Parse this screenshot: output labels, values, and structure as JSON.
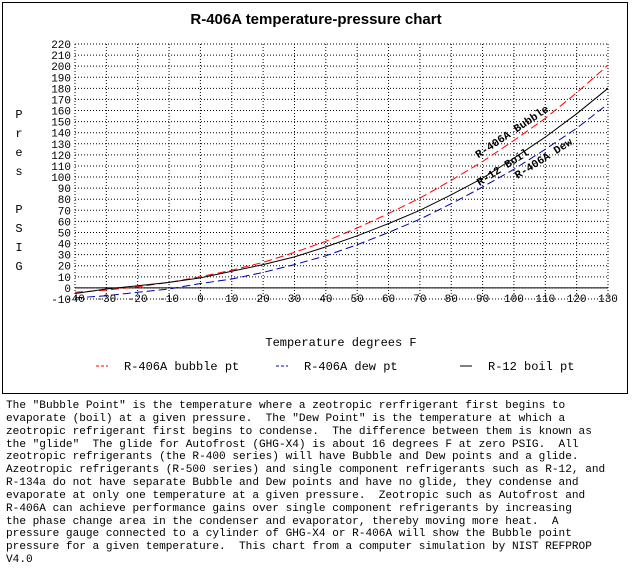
{
  "colors": {
    "bubble": "#ff0000",
    "dew": "#0000aa",
    "boil": "#000000",
    "grid": "#000000"
  },
  "chart_data": {
    "type": "line",
    "title": "R-406A temperature-pressure chart",
    "xlabel": "Temperature degrees F",
    "ylabel": "Pres PSIG",
    "ylabel_letters": [
      "P",
      "r",
      "e",
      "s",
      "",
      "P",
      "S",
      "I",
      "G"
    ],
    "xlim": [
      -40,
      130
    ],
    "ylim": [
      -10,
      220
    ],
    "x_ticks": [
      -40,
      -30,
      -20,
      -10,
      0,
      10,
      20,
      30,
      40,
      50,
      60,
      70,
      80,
      90,
      100,
      110,
      120,
      130
    ],
    "x_tick_labels": [
      "-40",
      "-30",
      "-20",
      "-10",
      "0",
      "10",
      "20",
      "30",
      "40",
      "50",
      "60",
      "70",
      "80",
      "90",
      "100",
      "110",
      "120",
      "130"
    ],
    "y_ticks": [
      -10,
      0,
      10,
      20,
      30,
      40,
      50,
      60,
      70,
      80,
      90,
      100,
      110,
      120,
      130,
      140,
      150,
      160,
      170,
      180,
      190,
      200,
      210,
      220
    ],
    "y_tick_labels": [
      "-10",
      "0",
      "10",
      "20",
      "30",
      "40",
      "50",
      "60",
      "70",
      "80",
      "90",
      "100",
      "110",
      "120",
      "130",
      "140",
      "150",
      "160",
      "170",
      "180",
      "190",
      "200",
      "210",
      "220"
    ],
    "grid": true,
    "legend_position": "bottom",
    "x": [
      -40,
      -30,
      -20,
      -10,
      0,
      10,
      20,
      30,
      40,
      50,
      60,
      70,
      80,
      90,
      100,
      110,
      120,
      130
    ],
    "series": [
      {
        "name": "R-406A bubble pt",
        "color_key": "bubble",
        "dash": "dashed",
        "values": [
          -4,
          -2,
          1,
          5,
          10,
          16,
          23,
          32,
          42,
          54,
          67,
          81,
          97,
          114,
          133,
          153,
          176,
          201
        ]
      },
      {
        "name": "R-406A dew pt",
        "color_key": "dew",
        "dash": "dashed",
        "values": [
          -9,
          -7,
          -4,
          -1,
          4,
          8,
          14,
          21,
          29,
          39,
          50,
          62,
          76,
          91,
          107,
          125,
          144,
          166
        ]
      },
      {
        "name": "R-12 boil pt",
        "color_key": "boil",
        "dash": "solid",
        "values": [
          -5,
          -1,
          2,
          5,
          9,
          15,
          21,
          28,
          37,
          47,
          58,
          70,
          84,
          99,
          117,
          136,
          157,
          180
        ]
      }
    ],
    "annotations": [
      {
        "text": "R-406A Bubble",
        "series": 0
      },
      {
        "text": "R-12 Boil",
        "series": 2
      },
      {
        "text": "R-406A Dew",
        "series": 1
      }
    ]
  },
  "explanation_lines": [
    "The \"Bubble Point\" is the temperature where a zeotropic rerfrigerant first begins to",
    "evaporate (boil) at a given pressure.  The \"Dew Point\" is the temperature at which a",
    "zeotropic refrigerant first begins to condense.  The difference between them is known as",
    "the \"glide\"  The glide for Autofrost (GHG-X4) is about 16 degrees F at zero PSIG.  All",
    "zeotropic refrigerants (the R-400 series) will have Bubble and Dew points and a glide.",
    "Azeotropic refrigerants (R-500 series) and single component refrigerants such as R-12, and",
    "R-134a do not have separate Bubble and Dew points and have no glide, they condense and",
    "evaporate at only one temperature at a given pressure.  Zeotropic such as Autofrost and",
    "R-406A can achieve performance gains over single component refrigerants by increasing",
    "the phase change area in the condenser and evaporator, thereby moving more heat.  A",
    "pressure gauge connected to a cylinder of GHG-X4 or R-406A will show the Bubble point",
    "pressure for a given temperature.  This chart from a computer simulation by NIST REFPROP",
    "V4.0"
  ]
}
